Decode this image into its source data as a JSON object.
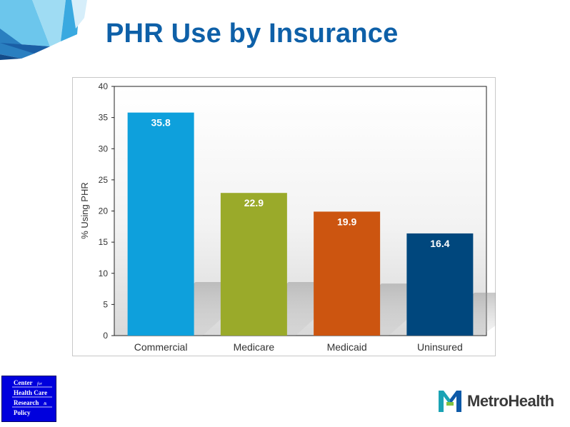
{
  "slide": {
    "title": "PHR Use by Insurance"
  },
  "chart_data": {
    "type": "bar",
    "title": "",
    "xlabel": "",
    "ylabel": "% Using PHR",
    "categories": [
      "Commercial",
      "Medicare",
      "Medicaid",
      "Uninsured"
    ],
    "values": [
      35.8,
      22.9,
      19.9,
      16.4
    ],
    "data_labels": [
      "35.8",
      "22.9",
      "19.9",
      "16.4"
    ],
    "ylim": [
      0,
      40
    ],
    "yticks": [
      0,
      5,
      10,
      15,
      20,
      25,
      30,
      35,
      40
    ],
    "colors": [
      "#0ea0dc",
      "#9aaa2a",
      "#cc5510",
      "#00477d"
    ],
    "grid": false,
    "legend": "none"
  },
  "footer": {
    "center_logo_lines": [
      "Center",
      "Health Care",
      "Research",
      "Policy"
    ],
    "center_logo_small": [
      "for",
      "&"
    ],
    "brand_wordmark": "MetroHealth"
  },
  "colors": {
    "title": "#0e60a8",
    "center_logo_bg": "#0000dd",
    "brand_teal": "#1aa3b4",
    "brand_blue": "#0e5aa8"
  }
}
